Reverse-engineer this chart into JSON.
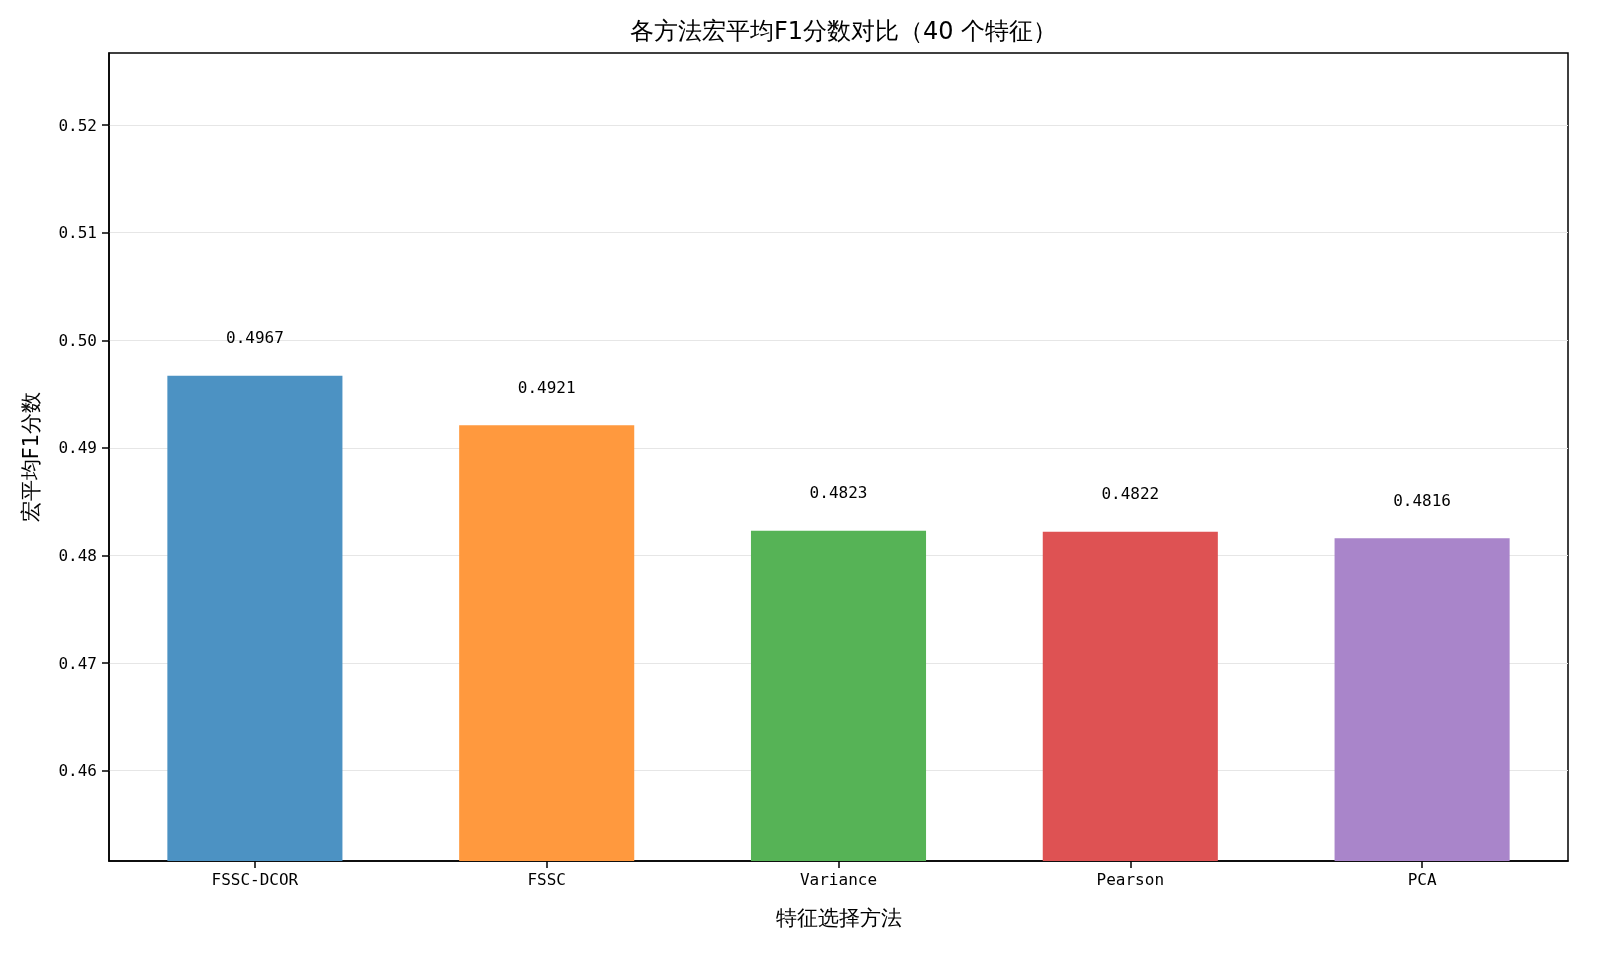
{
  "chart_data": {
    "type": "bar",
    "title": "各方法宏平均F1分数对比（40 个特征）",
    "xlabel": "特征选择方法",
    "ylabel": "宏平均F1分数",
    "categories": [
      "FSSC-DCOR",
      "FSSC",
      "Variance",
      "Pearson",
      "PCA"
    ],
    "values": [
      0.4967,
      0.4921,
      0.4823,
      0.4822,
      0.4816
    ],
    "colors": [
      "#4c92c3",
      "#ff993e",
      "#56b356",
      "#de5253",
      "#a985ca"
    ],
    "ylim": [
      0.4516,
      0.5267
    ],
    "yticks": [
      0.46,
      0.47,
      0.48,
      0.49,
      {
        "value": 0.5,
        "label": "0.50"
      },
      0.51,
      0.52
    ],
    "grid": "y",
    "data_labels": true
  }
}
